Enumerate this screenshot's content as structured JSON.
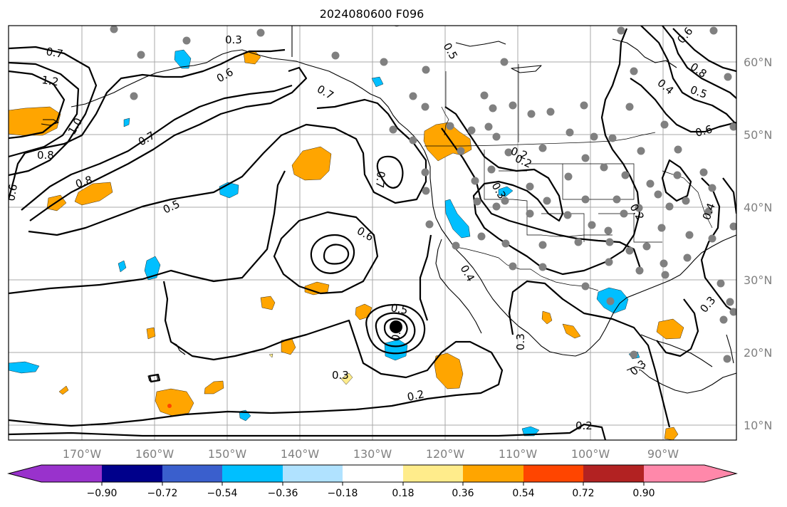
{
  "title": "2024080600 F096",
  "longitude_labels": [
    "170°W",
    "160°W",
    "150°W",
    "140°W",
    "130°W",
    "120°W",
    "110°W",
    "100°W",
    "90°W"
  ],
  "latitude_labels": [
    "60°N",
    "50°N",
    "40°N",
    "30°N",
    "20°N",
    "10°N"
  ],
  "colorbar": {
    "colors": [
      "#9932cc",
      "#00008b",
      "#3a5fcd",
      "#00bfff",
      "#b0e2ff",
      "#ffffff",
      "#ffec8b",
      "#ffa500",
      "#ff4500",
      "#b22222",
      "#ff88aa"
    ],
    "tick_labels": [
      "−0.90",
      "−0.72",
      "−0.54",
      "−0.36",
      "−0.18",
      "0.18",
      "0.36",
      "0.54",
      "0.72",
      "0.90"
    ]
  },
  "contour_labels": [
    "0.7",
    "1.2",
    "1.0",
    "0.8",
    "0.7",
    "0.8",
    "0.6",
    "0.3",
    "0.5",
    "0.6",
    "0.7",
    "0.7",
    "0.5",
    "0.6",
    "0.2",
    "0.3",
    "0.3",
    "0.2",
    "0.2",
    "0.4",
    "0.5",
    "0.5",
    "0.6",
    "0.8",
    "0.6",
    "0.2",
    "0.5",
    "0.4",
    "0.3",
    "0.3",
    "0.4",
    "0.3",
    "0.2"
  ],
  "marks": {
    "station_color": "#808080",
    "positive_anomaly_color": "#ffa500",
    "negative_anomaly_color": "#00bfff",
    "cyclone_center_color": "#000000"
  }
}
